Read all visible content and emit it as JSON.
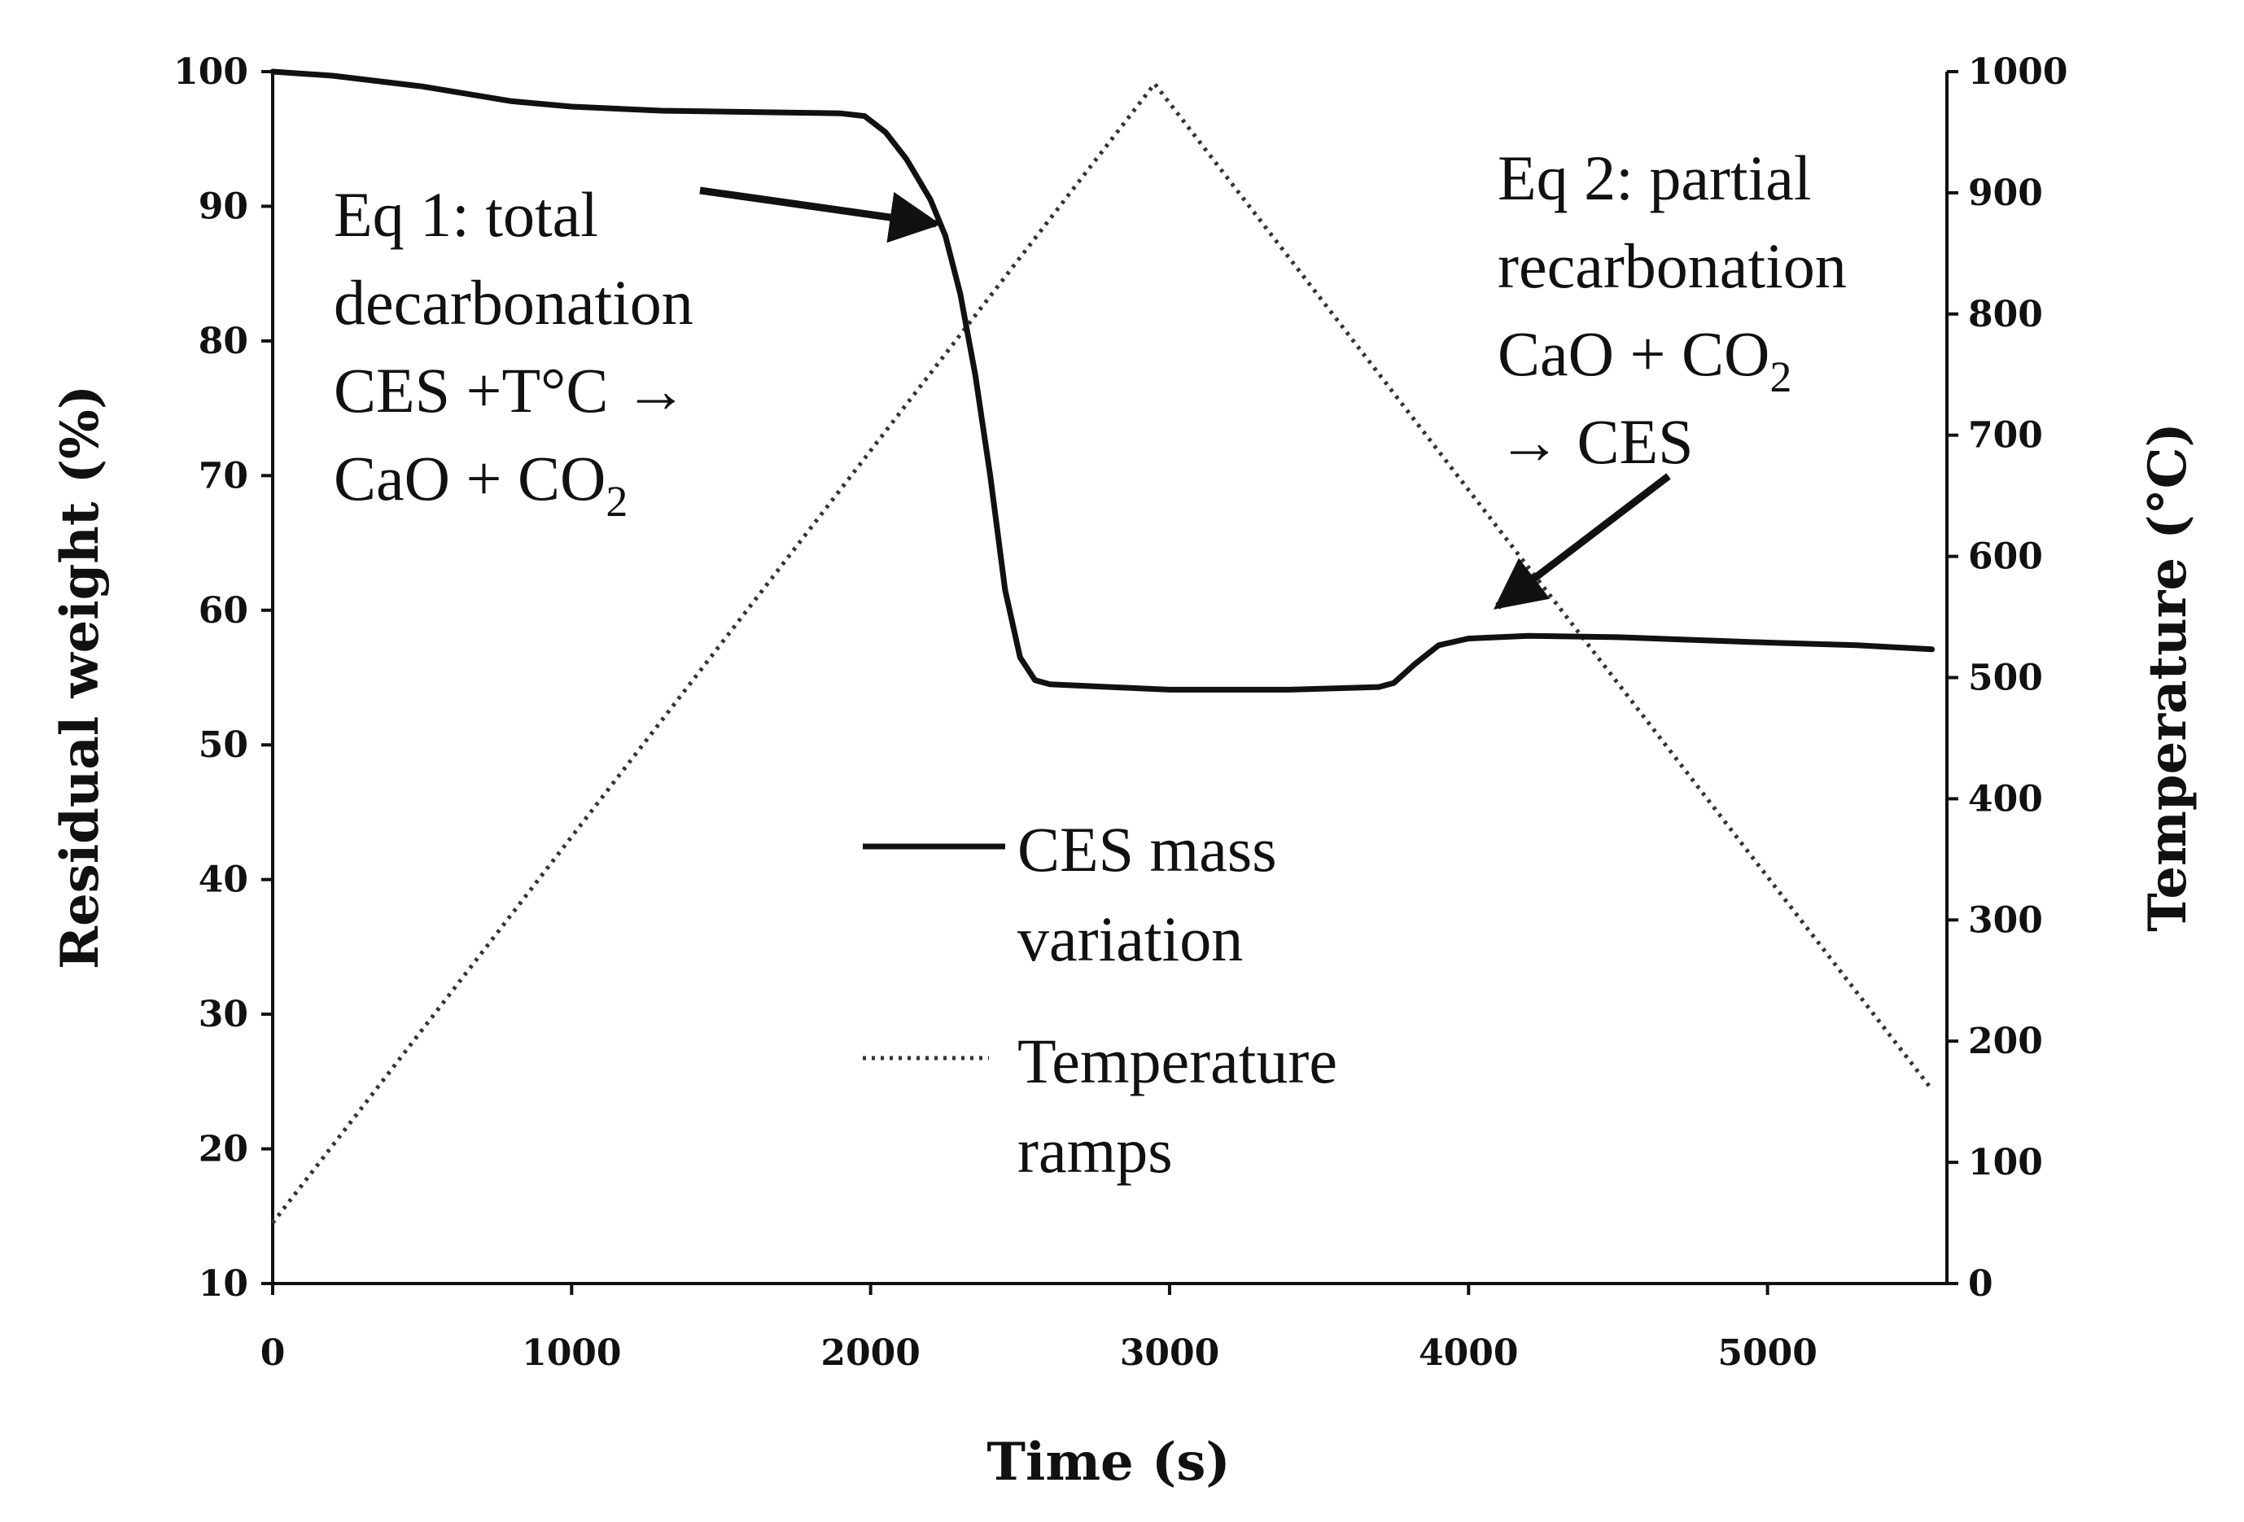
{
  "chart_data": {
    "type": "line",
    "title": "",
    "xlabel": "Time (s)",
    "ylabel_left": "Residual weight (%)",
    "ylabel_right": "Temperature (°C)",
    "xlim": [
      0,
      5600
    ],
    "ylim_left": [
      10,
      100
    ],
    "ylim_right": [
      0,
      1000
    ],
    "x_ticks": [
      "0",
      "1000",
      "2000",
      "3000",
      "4000",
      "5000"
    ],
    "y_ticks_left": [
      "10",
      "20",
      "30",
      "40",
      "50",
      "60",
      "70",
      "80",
      "90",
      "100"
    ],
    "y_ticks_right": [
      "0",
      "100",
      "200",
      "300",
      "400",
      "500",
      "600",
      "700",
      "800",
      "900",
      "1000"
    ],
    "grid": false,
    "legend_position": "center",
    "series": [
      {
        "name": "CES mass variation",
        "axis": "left",
        "style": "solid",
        "color": "#111111",
        "x": [
          0,
          200,
          500,
          800,
          1000,
          1300,
          1600,
          1900,
          1980,
          2050,
          2120,
          2200,
          2250,
          2300,
          2350,
          2400,
          2450,
          2500,
          2550,
          2600,
          2800,
          3000,
          3400,
          3700,
          3750,
          3820,
          3900,
          4000,
          4200,
          4500,
          5000,
          5300,
          5550
        ],
        "values": [
          100,
          99.7,
          98.9,
          97.8,
          97.4,
          97.1,
          97.0,
          96.9,
          96.7,
          95.5,
          93.5,
          90.5,
          87.8,
          83.5,
          77.5,
          70.0,
          61.5,
          56.5,
          54.8,
          54.5,
          54.3,
          54.1,
          54.1,
          54.3,
          54.6,
          56.0,
          57.4,
          57.9,
          58.1,
          58.0,
          57.6,
          57.4,
          57.1
        ]
      },
      {
        "name": "Temperature ramps",
        "axis": "right",
        "style": "dotted",
        "color": "#333333",
        "x": [
          0,
          2950,
          5550
        ],
        "values": [
          50,
          990,
          160
        ]
      }
    ],
    "legend": [
      {
        "line1": "CES mass",
        "line2": "variation",
        "style": "solid"
      },
      {
        "line1": "Temperature",
        "line2": "ramps",
        "style": "dotted"
      }
    ],
    "annotations": [
      {
        "id": "eq1",
        "lines": [
          "Eq 1: total",
          "decarbonation",
          "CES +T°C →",
          "CaO + CO"
        ],
        "subscript": "2",
        "points_to": {
          "x": 2200,
          "y": 91
        }
      },
      {
        "id": "eq2",
        "lines": [
          "Eq 2: partial",
          "recarbonation",
          "CaO + CO",
          "→ CES"
        ],
        "subscript": "2",
        "points_to": {
          "x": 4000,
          "y": 57.8
        }
      }
    ]
  }
}
